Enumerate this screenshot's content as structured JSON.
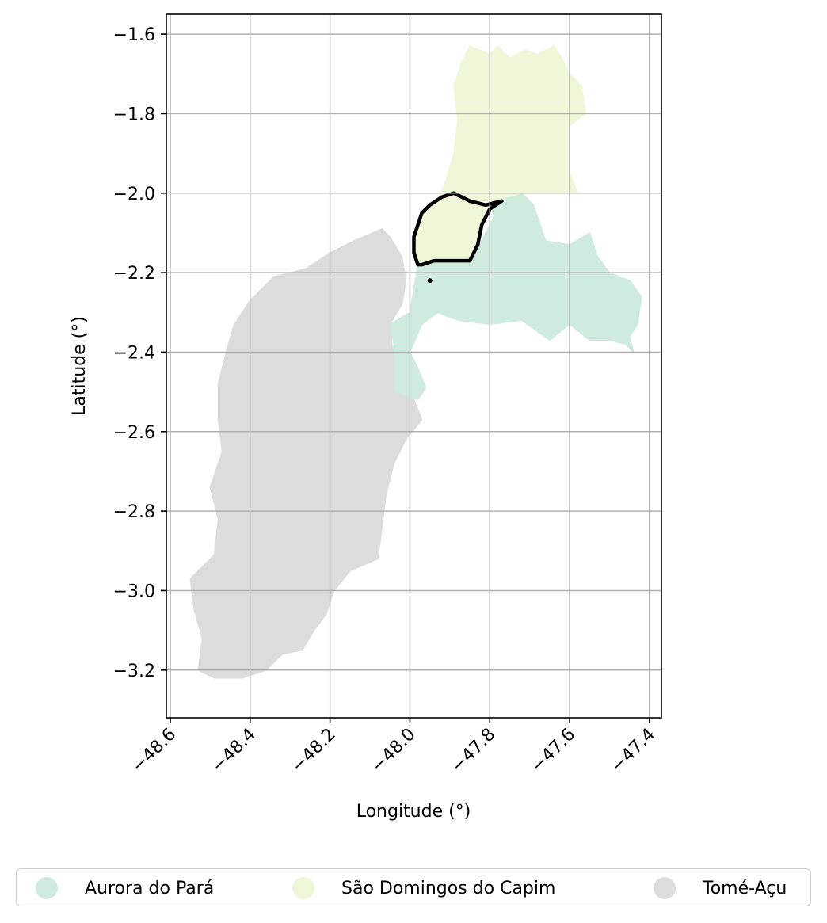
{
  "chart_data": {
    "type": "map",
    "title": "",
    "xlabel": "Longitude (°)",
    "ylabel": "Latitude (°)",
    "xlim": [
      -48.61,
      -47.37
    ],
    "ylim": [
      -3.32,
      -1.55
    ],
    "xticks": [
      -48.6,
      -48.4,
      -48.2,
      -48.0,
      -47.8,
      -47.6,
      -47.4
    ],
    "xtick_labels": [
      "−48.6",
      "−48.4",
      "−48.2",
      "−48.0",
      "−47.8",
      "−47.6",
      "−47.4"
    ],
    "yticks": [
      -1.6,
      -1.8,
      -2.0,
      -2.2,
      -2.4,
      -2.6,
      -2.8,
      -3.0,
      -3.2
    ],
    "ytick_labels": [
      "−1.6",
      "−1.8",
      "−2.0",
      "−2.2",
      "−2.4",
      "−2.6",
      "−2.8",
      "−3.0",
      "−3.2"
    ],
    "grid": true,
    "legend_position": "below",
    "regions": [
      {
        "name": "Aurora do Pará",
        "color": "#cfebdd",
        "polygon": [
          [
            -47.8,
            -2.0
          ],
          [
            -47.72,
            -2.0
          ],
          [
            -47.69,
            -2.03
          ],
          [
            -47.66,
            -2.12
          ],
          [
            -47.6,
            -2.13
          ],
          [
            -47.55,
            -2.1
          ],
          [
            -47.53,
            -2.16
          ],
          [
            -47.5,
            -2.2
          ],
          [
            -47.45,
            -2.22
          ],
          [
            -47.42,
            -2.26
          ],
          [
            -47.43,
            -2.33
          ],
          [
            -47.45,
            -2.36
          ],
          [
            -47.44,
            -2.4
          ],
          [
            -47.46,
            -2.38
          ],
          [
            -47.5,
            -2.37
          ],
          [
            -47.55,
            -2.37
          ],
          [
            -47.6,
            -2.33
          ],
          [
            -47.65,
            -2.37
          ],
          [
            -47.72,
            -2.32
          ],
          [
            -47.8,
            -2.33
          ],
          [
            -47.88,
            -2.32
          ],
          [
            -47.93,
            -2.3
          ],
          [
            -47.97,
            -2.33
          ],
          [
            -48.0,
            -2.4
          ],
          [
            -47.98,
            -2.44
          ],
          [
            -47.96,
            -2.49
          ],
          [
            -47.98,
            -2.52
          ],
          [
            -48.04,
            -2.5
          ],
          [
            -48.05,
            -2.45
          ],
          [
            -48.04,
            -2.38
          ],
          [
            -48.05,
            -2.33
          ],
          [
            -48.0,
            -2.3
          ],
          [
            -47.99,
            -2.24
          ],
          [
            -47.98,
            -2.18
          ],
          [
            -47.92,
            -2.17
          ],
          [
            -47.85,
            -2.17
          ],
          [
            -47.82,
            -2.12
          ],
          [
            -47.79,
            -2.06
          ]
        ]
      },
      {
        "name": "São Domingos do Capim",
        "color": "#eef8d9",
        "polygon": [
          [
            -47.8,
            -1.65
          ],
          [
            -47.78,
            -1.63
          ],
          [
            -47.75,
            -1.66
          ],
          [
            -47.71,
            -1.64
          ],
          [
            -47.68,
            -1.65
          ],
          [
            -47.64,
            -1.63
          ],
          [
            -47.62,
            -1.66
          ],
          [
            -47.6,
            -1.7
          ],
          [
            -47.57,
            -1.73
          ],
          [
            -47.56,
            -1.8
          ],
          [
            -47.6,
            -1.83
          ],
          [
            -47.6,
            -1.9
          ],
          [
            -47.6,
            -1.95
          ],
          [
            -47.58,
            -2.0
          ],
          [
            -47.72,
            -2.0
          ],
          [
            -47.79,
            -2.02
          ],
          [
            -47.85,
            -2.02
          ],
          [
            -47.9,
            -2.0
          ],
          [
            -47.93,
            -2.02
          ],
          [
            -47.91,
            -1.97
          ],
          [
            -47.89,
            -1.9
          ],
          [
            -47.88,
            -1.82
          ],
          [
            -47.89,
            -1.73
          ],
          [
            -47.87,
            -1.67
          ],
          [
            -47.85,
            -1.63
          ]
        ]
      },
      {
        "name": "Tomé-Açu",
        "color": "#dcdcdc",
        "polygon": [
          [
            -48.07,
            -2.09
          ],
          [
            -48.05,
            -2.11
          ],
          [
            -48.02,
            -2.16
          ],
          [
            -48.01,
            -2.22
          ],
          [
            -48.02,
            -2.28
          ],
          [
            -48.05,
            -2.33
          ],
          [
            -48.04,
            -2.43
          ],
          [
            -48.04,
            -2.5
          ],
          [
            -47.99,
            -2.52
          ],
          [
            -47.97,
            -2.57
          ],
          [
            -48.01,
            -2.62
          ],
          [
            -48.04,
            -2.68
          ],
          [
            -48.06,
            -2.76
          ],
          [
            -48.07,
            -2.84
          ],
          [
            -48.08,
            -2.92
          ],
          [
            -48.15,
            -2.95
          ],
          [
            -48.19,
            -3.0
          ],
          [
            -48.21,
            -3.06
          ],
          [
            -48.24,
            -3.1
          ],
          [
            -48.27,
            -3.15
          ],
          [
            -48.32,
            -3.16
          ],
          [
            -48.36,
            -3.2
          ],
          [
            -48.42,
            -3.22
          ],
          [
            -48.49,
            -3.22
          ],
          [
            -48.53,
            -3.2
          ],
          [
            -48.52,
            -3.12
          ],
          [
            -48.54,
            -3.05
          ],
          [
            -48.55,
            -2.97
          ],
          [
            -48.49,
            -2.91
          ],
          [
            -48.48,
            -2.82
          ],
          [
            -48.5,
            -2.74
          ],
          [
            -48.47,
            -2.65
          ],
          [
            -48.48,
            -2.57
          ],
          [
            -48.48,
            -2.48
          ],
          [
            -48.46,
            -2.4
          ],
          [
            -48.44,
            -2.33
          ],
          [
            -48.4,
            -2.27
          ],
          [
            -48.34,
            -2.21
          ],
          [
            -48.26,
            -2.19
          ],
          [
            -48.2,
            -2.15
          ],
          [
            -48.14,
            -2.12
          ]
        ]
      }
    ],
    "highlight": {
      "outline_color": "#000000",
      "polygon": [
        [
          -47.89,
          -2.0
        ],
        [
          -47.85,
          -2.02
        ],
        [
          -47.81,
          -2.03
        ],
        [
          -47.77,
          -2.02
        ],
        [
          -47.8,
          -2.04
        ],
        [
          -47.82,
          -2.08
        ],
        [
          -47.83,
          -2.13
        ],
        [
          -47.85,
          -2.17
        ],
        [
          -47.9,
          -2.17
        ],
        [
          -47.94,
          -2.17
        ],
        [
          -47.97,
          -2.18
        ],
        [
          -47.98,
          -2.18
        ],
        [
          -47.99,
          -2.15
        ],
        [
          -47.99,
          -2.11
        ],
        [
          -47.97,
          -2.05
        ],
        [
          -47.95,
          -2.03
        ],
        [
          -47.92,
          -2.01
        ]
      ],
      "dot": [
        -47.95,
        -2.22
      ]
    }
  }
}
